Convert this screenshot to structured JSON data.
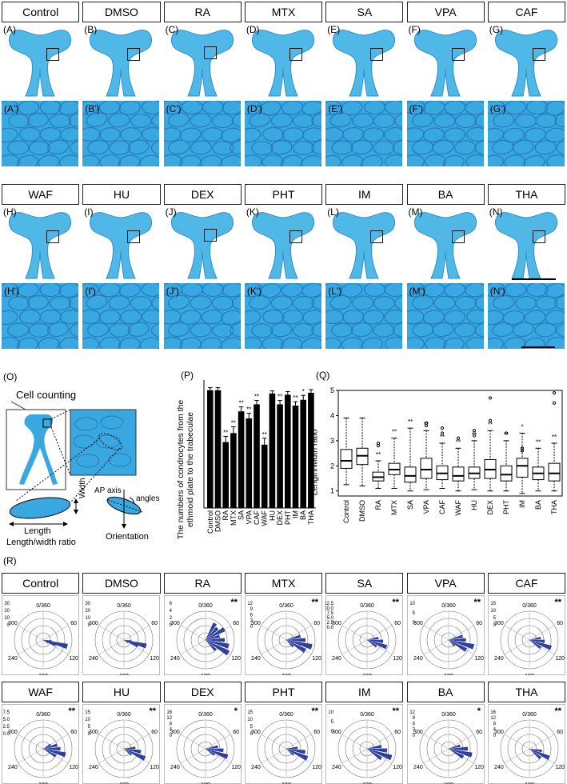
{
  "treatments_row1": [
    "Control",
    "DMSO",
    "RA",
    "MTX",
    "SA",
    "VPA",
    "CAF"
  ],
  "treatments_row2": [
    "WAF",
    "HU",
    "DEX",
    "PHT",
    "IM",
    "BA",
    "THA"
  ],
  "letters_row1": [
    "(A)",
    "(B)",
    "(C)",
    "(D)",
    "(E)",
    "(F)",
    "(G)"
  ],
  "letters_row1_prime": [
    "(A')",
    "(B')",
    "(C')",
    "(D')",
    "(E')",
    "(F')",
    "(G')"
  ],
  "letters_row2": [
    "(H)",
    "(I)",
    "(J)",
    "(K)",
    "(L)",
    "(M)",
    "(N)"
  ],
  "letters_row2_prime": [
    "(H')",
    "(I')",
    "(J')",
    "(K')",
    "(L')",
    "(M')",
    "(N')"
  ],
  "colors": {
    "cartilage": "#4fb8e6",
    "cartilage_dark": "#2f8ecf",
    "cell_bg": "#3aa8e0",
    "cell_wall": "#1f6fb5",
    "rose": "#2f3f9e"
  },
  "panel_o": {
    "label": "(O)",
    "title": "Cell counting",
    "length": "Length",
    "width": "Width",
    "ratio": "Length/width ratio",
    "ap_axis": "AP axis",
    "angles": "angles",
    "orientation": "Orientation"
  },
  "panel_p": {
    "label": "(P)",
    "ylabel_line1": "The numbers of condrocytes from the",
    "ylabel_line2": "ethmoid plate to the trabeculae"
  },
  "panel_q": {
    "label": "(Q)",
    "ylabel": "Length/width ratio"
  },
  "panel_r": {
    "label": "(R)",
    "angle_labels": [
      "0/360",
      "60",
      "120",
      "180",
      "240",
      "300"
    ]
  },
  "chart_data": [
    {
      "type": "bar",
      "categories": [
        "Control",
        "DMSO",
        "RA",
        "MTX",
        "SA",
        "VPA",
        "CAF",
        "WAF",
        "HU",
        "DEX",
        "PHT",
        "IM",
        "BA",
        "THA"
      ],
      "values": [
        184,
        184,
        103,
        117,
        151,
        140,
        162,
        99,
        179,
        162,
        177,
        160,
        169,
        180
      ],
      "errors": [
        4,
        4,
        9,
        10,
        7,
        8,
        6,
        10,
        4,
        6,
        5,
        6,
        7,
        5
      ],
      "significance": [
        "",
        "",
        "**",
        "**",
        "**",
        "**",
        "**",
        "**",
        "",
        "**",
        "",
        "**",
        "*",
        ""
      ],
      "ylim": [
        0,
        200
      ],
      "ylabel": "The numbers of condrocytes from the ethmoid plate to the trabeculae"
    },
    {
      "type": "box",
      "categories": [
        "Control",
        "DMSO",
        "RA",
        "MTX",
        "SA",
        "VPA",
        "CAF",
        "WAF",
        "HU",
        "DEX",
        "PHT",
        "IM",
        "BA",
        "THA"
      ],
      "boxes": [
        {
          "min": 1.25,
          "q1": 1.9,
          "median": 2.2,
          "q3": 2.65,
          "max": 3.9,
          "outliers": []
        },
        {
          "min": 1.2,
          "q1": 2.05,
          "median": 2.4,
          "q3": 2.7,
          "max": 3.9,
          "outliers": []
        },
        {
          "min": 1.1,
          "q1": 1.4,
          "median": 1.55,
          "q3": 1.75,
          "max": 2.2,
          "outliers": [
            2.8,
            2.9
          ]
        },
        {
          "min": 1.1,
          "q1": 1.65,
          "median": 1.85,
          "q3": 2.1,
          "max": 3.1,
          "outliers": []
        },
        {
          "min": 1.0,
          "q1": 1.35,
          "median": 1.6,
          "q3": 1.95,
          "max": 3.5,
          "outliers": []
        },
        {
          "min": 1.05,
          "q1": 1.5,
          "median": 1.85,
          "q3": 2.3,
          "max": 3.4,
          "outliers": [
            3.6,
            3.7
          ]
        },
        {
          "min": 1.1,
          "q1": 1.45,
          "median": 1.7,
          "q3": 2.0,
          "max": 2.9,
          "outliers": [
            3.3,
            3.5
          ]
        },
        {
          "min": 1.0,
          "q1": 1.4,
          "median": 1.6,
          "q3": 1.95,
          "max": 2.7,
          "outliers": [
            3.1
          ]
        },
        {
          "min": 1.05,
          "q1": 1.5,
          "median": 1.7,
          "q3": 1.95,
          "max": 3.0,
          "outliers": [
            3.2,
            3.4
          ]
        },
        {
          "min": 1.0,
          "q1": 1.5,
          "median": 1.85,
          "q3": 2.25,
          "max": 3.4,
          "outliers": [
            3.8,
            4.7
          ]
        },
        {
          "min": 1.0,
          "q1": 1.4,
          "median": 1.65,
          "q3": 2.0,
          "max": 3.0,
          "outliers": [
            3.3
          ]
        },
        {
          "min": 0.9,
          "q1": 1.55,
          "median": 2.0,
          "q3": 2.3,
          "max": 3.3,
          "outliers": [
            2.6,
            2.7
          ]
        },
        {
          "min": 1.0,
          "q1": 1.45,
          "median": 1.7,
          "q3": 1.95,
          "max": 2.7,
          "outliers": []
        },
        {
          "min": 1.0,
          "q1": 1.4,
          "median": 1.7,
          "q3": 2.1,
          "max": 2.9,
          "outliers": [
            4.5,
            4.9
          ]
        }
      ],
      "significance": [
        "",
        "",
        "**",
        "**",
        "**",
        "**",
        "**",
        "**",
        "**",
        "**",
        "**",
        "*",
        "**",
        "**"
      ],
      "ylim": [
        0.8,
        5.0
      ],
      "yticks": [
        1,
        2,
        3,
        4,
        5
      ],
      "ylabel": "Length/width ratio"
    },
    {
      "type": "rose",
      "charts": [
        {
          "name": "Control",
          "sig": "",
          "rmax": 30,
          "rticks": [
            "0",
            "10",
            "20",
            "30"
          ],
          "bins": [
            {
              "a": 105,
              "v": 26
            },
            {
              "a": 112,
              "v": 14
            },
            {
              "a": 98,
              "v": 9
            },
            {
              "a": 120,
              "v": 6
            }
          ]
        },
        {
          "name": "DMSO",
          "sig": "",
          "rmax": 30,
          "rticks": [
            "0",
            "10",
            "20",
            "30"
          ],
          "bins": [
            {
              "a": 105,
              "v": 24
            },
            {
              "a": 112,
              "v": 16
            },
            {
              "a": 98,
              "v": 8
            },
            {
              "a": 125,
              "v": 5
            }
          ]
        },
        {
          "name": "RA",
          "sig": "**",
          "rmax": 6,
          "rticks": [
            "0",
            "2",
            "4",
            "6"
          ],
          "bins": [
            {
              "a": 30,
              "v": 4
            },
            {
              "a": 45,
              "v": 3.5
            },
            {
              "a": 60,
              "v": 4.5
            },
            {
              "a": 75,
              "v": 3
            },
            {
              "a": 90,
              "v": 4
            },
            {
              "a": 105,
              "v": 5
            },
            {
              "a": 120,
              "v": 5.5
            },
            {
              "a": 135,
              "v": 3
            }
          ]
        },
        {
          "name": "MTX",
          "sig": "**",
          "rmax": 12,
          "rticks": [
            "0",
            "3",
            "6",
            "9",
            "12"
          ],
          "bins": [
            {
              "a": 75,
              "v": 6
            },
            {
              "a": 90,
              "v": 8
            },
            {
              "a": 105,
              "v": 11
            },
            {
              "a": 120,
              "v": 9
            },
            {
              "a": 135,
              "v": 4
            }
          ]
        },
        {
          "name": "SA",
          "sig": "**",
          "rmax": 12.5,
          "rticks": [
            "0.0",
            "2.5",
            "5.0",
            "7.5",
            "10.0",
            "12.5"
          ],
          "bins": [
            {
              "a": 80,
              "v": 5
            },
            {
              "a": 95,
              "v": 7
            },
            {
              "a": 110,
              "v": 9
            },
            {
              "a": 125,
              "v": 5
            }
          ]
        },
        {
          "name": "VPA",
          "sig": "**",
          "rmax": 10,
          "rticks": [
            "0",
            "5",
            "10"
          ],
          "bins": [
            {
              "a": 75,
              "v": 5
            },
            {
              "a": 90,
              "v": 6
            },
            {
              "a": 105,
              "v": 9
            },
            {
              "a": 120,
              "v": 7
            },
            {
              "a": 135,
              "v": 3
            }
          ]
        },
        {
          "name": "CAF",
          "sig": "**",
          "rmax": 15,
          "rticks": [
            "0",
            "5",
            "10",
            "15"
          ],
          "bins": [
            {
              "a": 80,
              "v": 6
            },
            {
              "a": 95,
              "v": 8
            },
            {
              "a": 110,
              "v": 12
            },
            {
              "a": 125,
              "v": 7
            }
          ]
        },
        {
          "name": "WAF",
          "sig": "**",
          "rmax": 10,
          "rticks": [
            "0.0",
            "2.5",
            "5.0",
            "7.5"
          ],
          "bins": [
            {
              "a": 75,
              "v": 5
            },
            {
              "a": 90,
              "v": 6
            },
            {
              "a": 105,
              "v": 8
            },
            {
              "a": 120,
              "v": 5
            },
            {
              "a": 60,
              "v": 3
            }
          ]
        },
        {
          "name": "HU",
          "sig": "**",
          "rmax": 15,
          "rticks": [
            "0",
            "5",
            "10",
            "15"
          ],
          "bins": [
            {
              "a": 85,
              "v": 6
            },
            {
              "a": 100,
              "v": 9
            },
            {
              "a": 115,
              "v": 12
            },
            {
              "a": 130,
              "v": 5
            }
          ]
        },
        {
          "name": "DEX",
          "sig": "*",
          "rmax": 16,
          "rticks": [
            "0",
            "4",
            "8",
            "12",
            "16"
          ],
          "bins": [
            {
              "a": 80,
              "v": 7
            },
            {
              "a": 95,
              "v": 10
            },
            {
              "a": 110,
              "v": 13
            },
            {
              "a": 125,
              "v": 6
            }
          ]
        },
        {
          "name": "PHT",
          "sig": "**",
          "rmax": 15,
          "rticks": [
            "0",
            "5",
            "10",
            "15"
          ],
          "bins": [
            {
              "a": 85,
              "v": 6
            },
            {
              "a": 100,
              "v": 10
            },
            {
              "a": 115,
              "v": 12
            },
            {
              "a": 130,
              "v": 5
            }
          ]
        },
        {
          "name": "IM",
          "sig": "**",
          "rmax": 10,
          "rticks": [
            "0",
            "5",
            "10"
          ],
          "bins": [
            {
              "a": 80,
              "v": 5
            },
            {
              "a": 95,
              "v": 7
            },
            {
              "a": 110,
              "v": 9
            },
            {
              "a": 125,
              "v": 6
            }
          ]
        },
        {
          "name": "BA",
          "sig": "*",
          "rmax": 12,
          "rticks": [
            "0",
            "3",
            "6",
            "9",
            "12"
          ],
          "bins": [
            {
              "a": 75,
              "v": 5
            },
            {
              "a": 90,
              "v": 8
            },
            {
              "a": 105,
              "v": 10
            },
            {
              "a": 120,
              "v": 7
            }
          ]
        },
        {
          "name": "THA",
          "sig": "**",
          "rmax": 16,
          "rticks": [
            "0",
            "4",
            "8",
            "12",
            "16"
          ],
          "bins": [
            {
              "a": 100,
              "v": 7
            },
            {
              "a": 115,
              "v": 12
            },
            {
              "a": 130,
              "v": 8
            }
          ]
        }
      ]
    }
  ]
}
